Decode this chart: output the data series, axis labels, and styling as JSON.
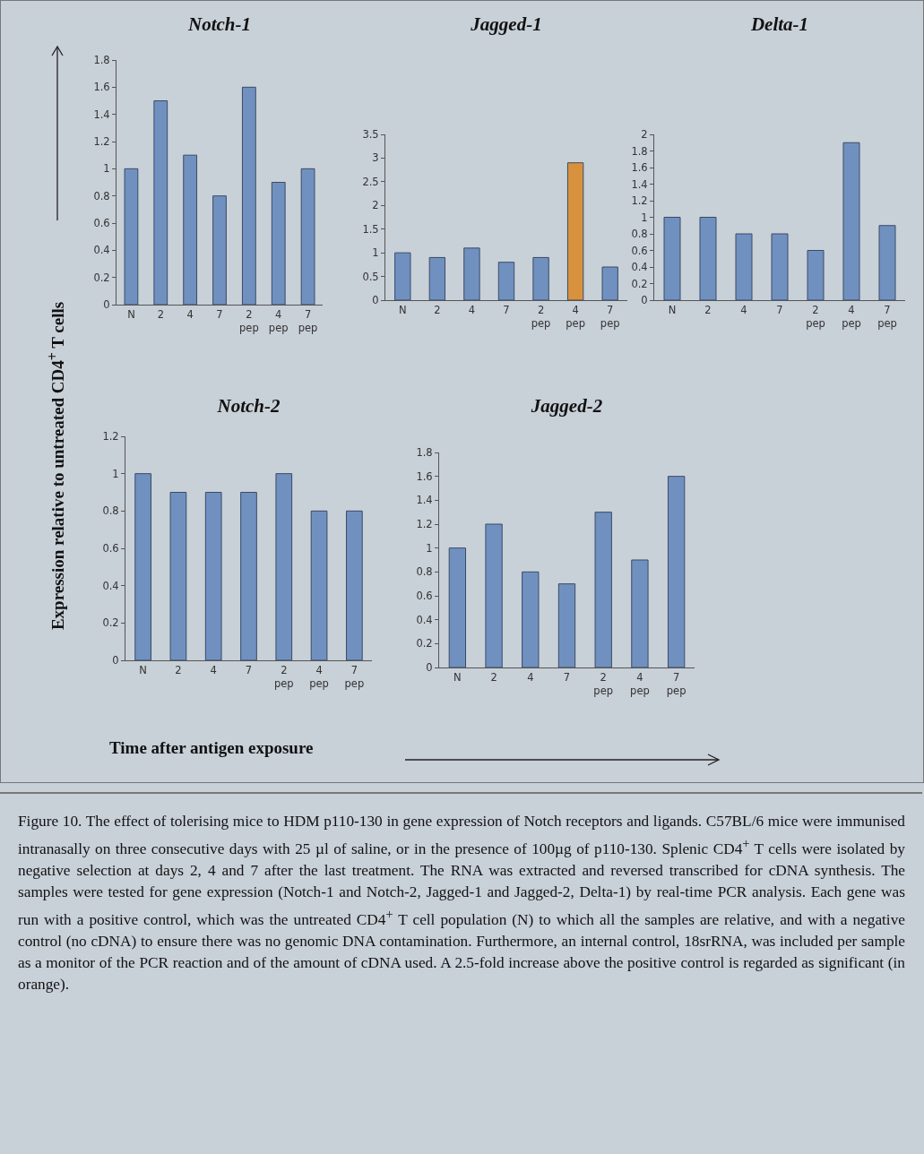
{
  "chart_data": [
    {
      "type": "bar",
      "title": "Notch-1",
      "ylabel": "Expression relative to untreated CD4$^{+}$ T cells",
      "categories": [
        "N",
        "2",
        "4",
        "7",
        "2\npep",
        "4\npep",
        "7\npep"
      ],
      "values": [
        1,
        1.5,
        1.1,
        0.8,
        1.6,
        0.9,
        1.0
      ],
      "color": "#7091c0",
      "ylim": [
        0,
        1.8
      ],
      "yticks": [
        0,
        0.2,
        0.4,
        0.6,
        0.8,
        1,
        1.2,
        1.4,
        1.6,
        1.8
      ]
    },
    {
      "type": "bar",
      "title": "Jagged-1",
      "categories": [
        "N",
        "2",
        "4",
        "7",
        "2\npep",
        "4\npep",
        "7\npep"
      ],
      "values": [
        1.0,
        0.9,
        1.1,
        0.8,
        0.9,
        2.9,
        0.7
      ],
      "colors": [
        "#7091c0",
        "#7091c0",
        "#7091c0",
        "#7091c0",
        "#7091c0",
        "#d8923e",
        "#7091c0"
      ],
      "ylim": [
        0,
        3.5
      ],
      "yticks": [
        0,
        0.5,
        1,
        1.5,
        2,
        2.5,
        3,
        3.5
      ]
    },
    {
      "type": "bar",
      "title": "Delta-1",
      "categories": [
        "N",
        "2",
        "4",
        "7",
        "2\npep",
        "4\npep",
        "7\npep"
      ],
      "values": [
        1,
        1,
        0.8,
        0.8,
        0.6,
        1.9,
        0.9
      ],
      "color": "#7091c0",
      "ylim": [
        0,
        2
      ],
      "yticks": [
        0,
        0.2,
        0.4,
        0.6,
        0.8,
        1,
        1.2,
        1.4,
        1.6,
        1.8,
        2
      ]
    },
    {
      "type": "bar",
      "title": "Notch-2",
      "xlabel": "Time after antigen exposure",
      "categories": [
        "N",
        "2",
        "4",
        "7",
        "2\npep",
        "4\npep",
        "7\npep"
      ],
      "values": [
        1,
        0.9,
        0.9,
        0.9,
        1,
        0.8,
        0.8
      ],
      "color": "#7091c0",
      "ylim": [
        0,
        1.2
      ],
      "yticks": [
        0,
        0.2,
        0.4,
        0.6,
        0.8,
        1,
        1.2
      ]
    },
    {
      "type": "bar",
      "title": "Jagged-2",
      "categories": [
        "N",
        "2",
        "4",
        "7",
        "2\npep",
        "4\npep",
        "7\npep"
      ],
      "values": [
        1,
        1.2,
        0.8,
        0.7,
        1.3,
        0.9,
        1.6
      ],
      "color": "#7091c0",
      "ylim": [
        0,
        1.8
      ],
      "yticks": [
        0,
        0.2,
        0.4,
        0.6,
        0.8,
        1,
        1.2,
        1.4,
        1.6,
        1.8
      ],
      "annotations": [
        "Figure 10. The effect of tolerising mice to HDM p110-130 in gene expression of Notch receptors and ligands. C57BL/6 mice were immunised intranasally on three consecutive days with 25 µl of saline, or in the presence of 100µg of p110-130. Splenic CD4$^{+}$ T cells were isolated by negative selection at days 2, 4 and 7 after the last treatment. The RNA was extracted and reversed transcribed for cDNA synthesis. The samples were tested for gene expression (Notch-1 and Notch-2, Jagged-1 and Jagged-2, Delta-1) by real-time PCR analysis. Each gene was run with a positive control, which was the untreated CD4$^{+}$ T cell population (N) to which all the samples are relative, and with a negative control (no cDNA) to ensure there was no genomic DNA contamination. Furthermore, an internal control, 18srRNA, was included per sample as a monitor of the PCR reaction and of the amount of cDNA used. A 2.5-fold increase above the positive control is regarded as significant (in orange)."
      ]
    }
  ]
}
